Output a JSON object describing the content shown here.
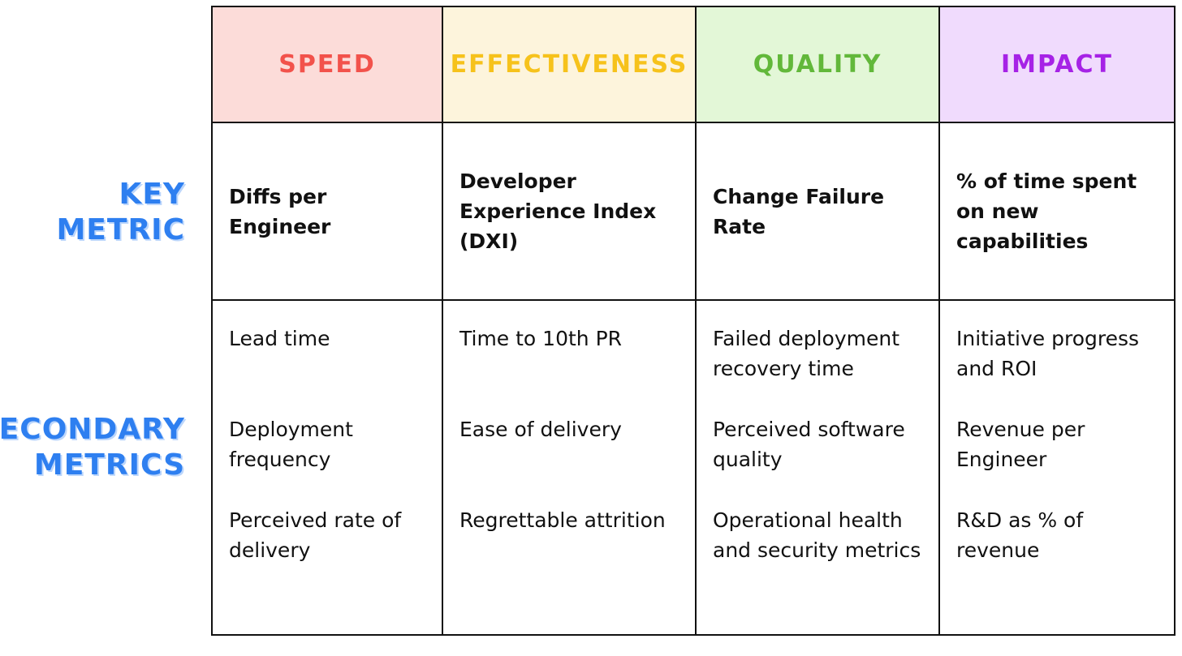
{
  "row_labels": {
    "key_metric": [
      "KEY",
      "METRIC"
    ],
    "secondary_metrics": [
      "SECONDARY",
      "METRICS"
    ]
  },
  "columns": [
    {
      "header": "SPEED",
      "header_color": "#f2524b",
      "header_bg": "#fcdcd9",
      "key_metric": "Diffs per Engineer",
      "secondary_metrics": [
        "Lead time",
        "Deployment frequency",
        "Perceived rate of delivery"
      ]
    },
    {
      "header": "EFFECTIVENESS",
      "header_color": "#f6c21b",
      "header_bg": "#fdf4dc",
      "key_metric": "Developer Experience Index (DXI)",
      "secondary_metrics": [
        "Time to 10th PR",
        "Ease of delivery",
        "Regrettable attrition"
      ]
    },
    {
      "header": "QUALITY",
      "header_color": "#62b83a",
      "header_bg": "#e3f7d7",
      "key_metric": "Change Failure Rate",
      "secondary_metrics": [
        "Failed deployment recovery time",
        "Perceived software quality",
        "Operational health and security metrics"
      ]
    },
    {
      "header": "IMPACT",
      "header_color": "#a622e6",
      "header_bg": "#f0dbfd",
      "key_metric": "% of time spent on new capabilities",
      "secondary_metrics": [
        "Initiative progress and ROI",
        "Revenue per Engineer",
        "R&D as % of revenue"
      ]
    }
  ],
  "colors": {
    "row_label": "#2e7ff0",
    "grid_line": "#111111"
  }
}
